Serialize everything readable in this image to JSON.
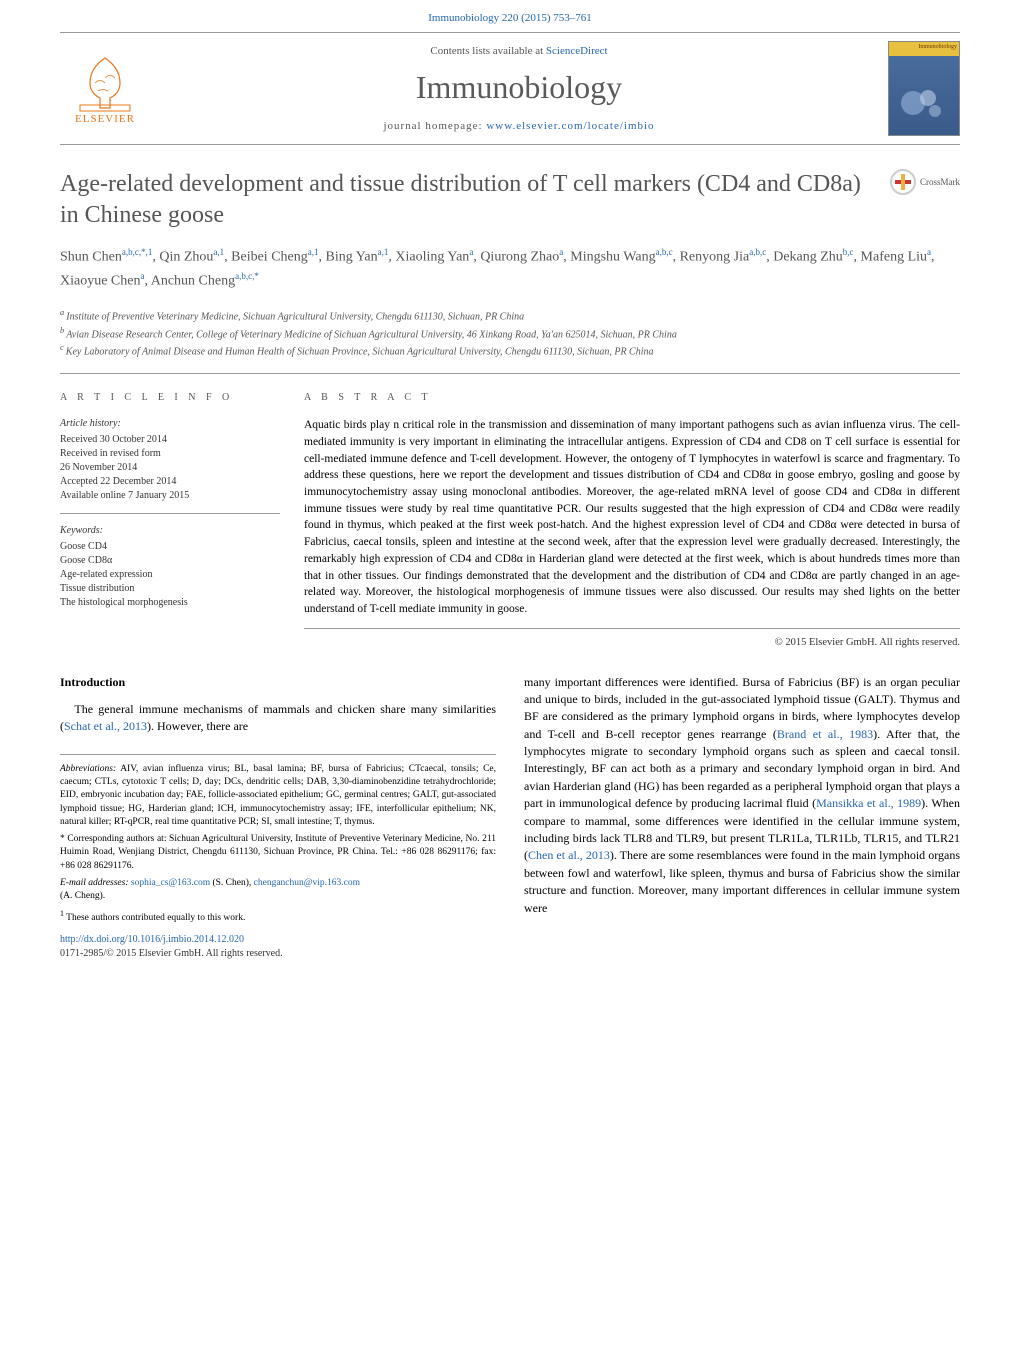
{
  "colors": {
    "link": "#2566b0",
    "heading_gray": "#555555",
    "orange": "#e77619",
    "bg": "#ffffff"
  },
  "header": {
    "citation": "Immunobiology 220 (2015) 753–761",
    "publisher_name": "ELSEVIER",
    "contents_prefix": "Contents lists available at ",
    "contents_link": "ScienceDirect",
    "journal_name": "Immunobiology",
    "homepage_prefix": "journal homepage: ",
    "homepage_link": "www.elsevier.com/locate/imbio",
    "cover_label": "Immunobiology"
  },
  "crossmark": {
    "label": "CrossMark"
  },
  "article": {
    "title": "Age-related development and tissue distribution of T cell markers (CD4 and CD8a) in Chinese goose",
    "authors_html": [
      {
        "name": "Shun Chen",
        "aff": "a,b,c,*,1"
      },
      {
        "name": "Qin Zhou",
        "aff": "a,1"
      },
      {
        "name": "Beibei Cheng",
        "aff": "a,1"
      },
      {
        "name": "Bing Yan",
        "aff": "a,1"
      },
      {
        "name": "Xiaoling Yan",
        "aff": "a"
      },
      {
        "name": "Qiurong Zhao",
        "aff": "a"
      },
      {
        "name": "Mingshu Wang",
        "aff": "a,b,c"
      },
      {
        "name": "Renyong Jia",
        "aff": "a,b,c"
      },
      {
        "name": "Dekang Zhu",
        "aff": "b,c"
      },
      {
        "name": "Mafeng Liu",
        "aff": "a"
      },
      {
        "name": "Xiaoyue Chen",
        "aff": "a"
      },
      {
        "name": "Anchun Cheng",
        "aff": "a,b,c,*"
      }
    ],
    "affiliations": [
      {
        "key": "a",
        "text": "Institute of Preventive Veterinary Medicine, Sichuan Agricultural University, Chengdu 611130, Sichuan, PR China"
      },
      {
        "key": "b",
        "text": "Avian Disease Research Center, College of Veterinary Medicine of Sichuan Agricultural University, 46 Xinkang Road, Ya'an 625014, Sichuan, PR China"
      },
      {
        "key": "c",
        "text": "Key Laboratory of Animal Disease and Human Health of Sichuan Province, Sichuan Agricultural University, Chengdu 611130, Sichuan, PR China"
      }
    ]
  },
  "info": {
    "heading": "a r t i c l e   i n f o",
    "history_label": "Article history:",
    "history": [
      "Received 30 October 2014",
      "Received in revised form",
      "26 November 2014",
      "Accepted 22 December 2014",
      "Available online 7 January 2015"
    ],
    "keywords_label": "Keywords:",
    "keywords": [
      "Goose CD4",
      "Goose CD8α",
      "Age-related expression",
      "Tissue distribution",
      "The histological morphogenesis"
    ]
  },
  "abstract": {
    "heading": "a b s t r a c t",
    "text": "Aquatic birds play n critical role in the transmission and dissemination of many important pathogens such as avian influenza virus. The cell-mediated immunity is very important in eliminating the intracellular antigens. Expression of CD4 and CD8 on T cell surface is essential for cell-mediated immune defence and T-cell development. However, the ontogeny of T lymphocytes in waterfowl is scarce and fragmentary. To address these questions, here we report the development and tissues distribution of CD4 and CD8α in goose embryo, gosling and goose by immunocytochemistry assay using monoclonal antibodies. Moreover, the age-related mRNA level of goose CD4 and CD8α in different immune tissues were study by real time quantitative PCR. Our results suggested that the high expression of CD4 and CD8α were readily found in thymus, which peaked at the first week post-hatch. And the highest expression level of CD4 and CD8α were detected in bursa of Fabricius, caecal tonsils, spleen and intestine at the second week, after that the expression level were gradually decreased. Interestingly, the remarkably high expression of CD4 and CD8α in Harderian gland were detected at the first week, which is about hundreds times more than that in other tissues. Our findings demonstrated that the development and the distribution of CD4 and CD8α are partly changed in an age-related way. Moreover, the histological morphogenesis of immune tissues were also discussed. Our results may shed lights on the better understand of T-cell mediate immunity in goose.",
    "copyright": "© 2015 Elsevier GmbH. All rights reserved."
  },
  "body": {
    "intro_heading": "Introduction",
    "left_para": "The general immune mechanisms of mammals and chicken share many similarities (",
    "left_cite1": "Schat et al., 2013",
    "left_para_end": "). However, there are",
    "right_para_p1a": "many important differences were identified. Bursa of Fabricius (BF) is an organ peculiar and unique to birds, included in the gut-associated lymphoid tissue (GALT). Thymus and BF are considered as the primary lymphoid organs in birds, where lymphocytes develop and T-cell and B-cell receptor genes rearrange (",
    "right_cite1": "Brand et al., 1983",
    "right_para_p1b": "). After that, the lymphocytes migrate to secondary lymphoid organs such as spleen and caecal tonsil. Interestingly, BF can act both as a primary and secondary lymphoid organ in bird. And avian Harderian gland (HG) has been regarded as a peripheral lymphoid organ that plays a part in immunological defence by producing lacrimal fluid (",
    "right_cite2": "Mansikka et al., 1989",
    "right_para_p1c": "). When compare to mammal, some differences were identified in the cellular immune system, including birds lack TLR8 and TLR9, but present TLR1La, TLR1Lb, TLR15, and TLR21 (",
    "right_cite3": "Chen et al., 2013",
    "right_para_p1d": "). There are some resemblances were found in the main lymphoid organs between fowl and waterfowl, like spleen, thymus and bursa of Fabricius show the similar structure and function. Moreover, many important differences in cellular immune system were"
  },
  "footnotes": {
    "abbrev_label": "Abbreviations:",
    "abbrev": " AIV, avian influenza virus; BL, basal lamina; BF, bursa of Fabricius; CTcaecal, tonsils; Ce, caecum; CTLs, cytotoxic T cells; D, day; DCs, dendritic cells; DAB, 3,30-diaminobenzidine tetrahydrochloride; EID, embryonic incubation day; FAE, follicle-associated epithelium; GC, germinal centres; GALT, gut-associated lymphoid tissue; HG, Harderian gland; ICH, immunocytochemistry assay; IFE, interfollicular epithelium; NK, natural killer; RT-qPCR, real time quantitative PCR; SI, small intestine; T, thymus.",
    "corr_label": "*",
    "corr": " Corresponding authors at: Sichuan Agricultural University, Institute of Preventive Veterinary Medicine, No. 211 Huimin Road, Wenjiang District, Chengdu 611130, Sichuan Province, PR China. Tel.: +86 028 86291176; fax: +86 028 86291176.",
    "email_label": "E-mail addresses:",
    "email1": "sophia_cs@163.com",
    "email1_name": " (S. Chen), ",
    "email2": "chenganchun@vip.163.com",
    "email2_name": "(A. Cheng).",
    "equal": "These authors contributed equally to this work.",
    "doi": "http://dx.doi.org/10.1016/j.imbio.2014.12.020",
    "issn": "0171-2985/© 2015 Elsevier GmbH. All rights reserved."
  }
}
